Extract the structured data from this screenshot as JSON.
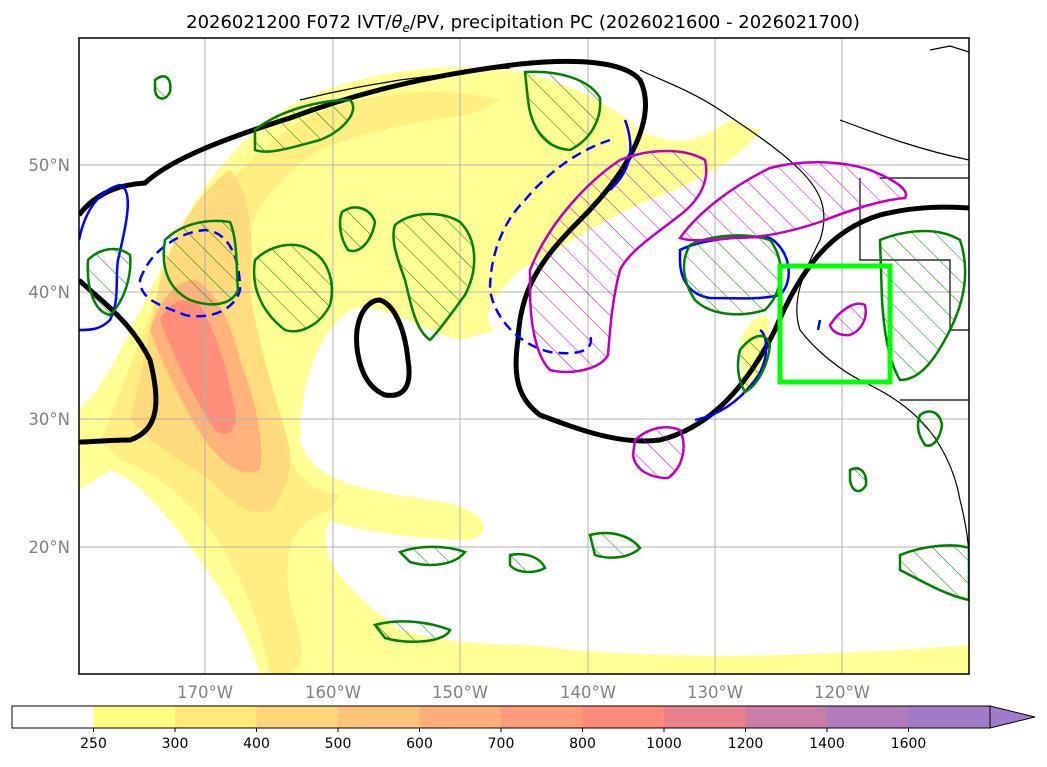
{
  "title": {
    "main": "2026021200 F072 IVT/",
    "theta": "θ",
    "sub": "e",
    "rest": "/PV, precipitation PC (2026021600 - 2026021700)"
  },
  "map": {
    "lat_labels": [
      "50°N",
      "40°N",
      "30°N",
      "20°N"
    ],
    "lon_labels": [
      "170°W",
      "160°W",
      "150°W",
      "140°W",
      "130°W",
      "120°W"
    ],
    "grid": true,
    "highlight_box_color": "#00ff00"
  },
  "colorbar": {
    "levels": [
      "250",
      "300",
      "400",
      "500",
      "600",
      "700",
      "800",
      "1000",
      "1200",
      "1400",
      "1600"
    ],
    "colors": [
      "#ffffff",
      "#ffff80",
      "#ffe97a",
      "#ffd57a",
      "#ffc27a",
      "#ffae7a",
      "#ff9a7a",
      "#ff8a7a",
      "#e9808c",
      "#c97ea8",
      "#b07cbc",
      "#a07cc8"
    ],
    "extend": "max"
  },
  "contour_colors": {
    "ivt_strong": "#ff8080",
    "theta_e": "#000000",
    "pv_cold": "#0000ff",
    "precip_green": "#008000",
    "precip_magenta": "#c000c0"
  }
}
